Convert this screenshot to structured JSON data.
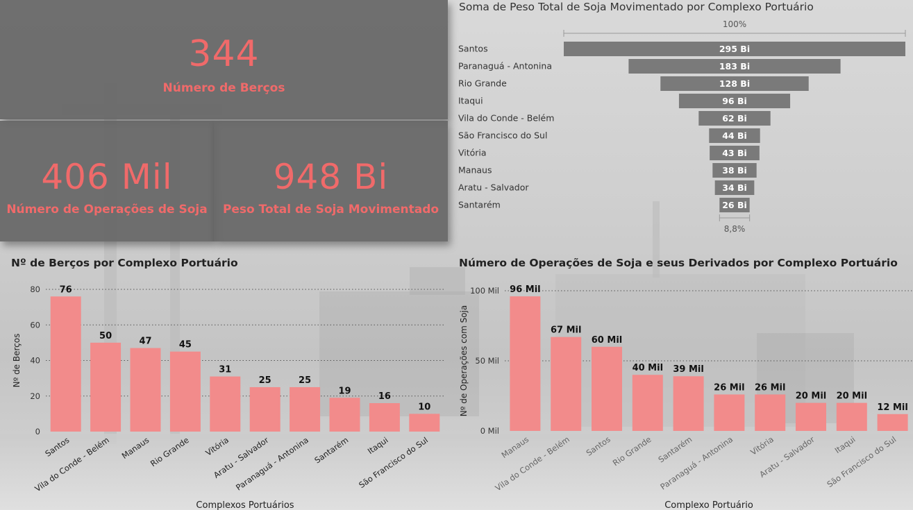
{
  "kpis": {
    "berths": {
      "value": "344",
      "label": "Número de Berços"
    },
    "operations": {
      "value": "406 Mil",
      "label": "Número de Operações de Soja"
    },
    "weight": {
      "value": "948 Bi",
      "label": "Peso Total de Soja Movimentado"
    }
  },
  "colors": {
    "kpi_bg": "#666666",
    "kpi_text": "#f06a6a",
    "funnel_bar": "#7a7a7a",
    "column_bar": "#f28b8b"
  },
  "chart_data": [
    {
      "type": "funnel",
      "title": "Soma de Peso Total de Soja Movimentado por Complexo Portuário",
      "top_pct_label": "100%",
      "bottom_pct_label": "8,8%",
      "categories": [
        "Santos",
        "Paranaguá - Antonina",
        "Rio Grande",
        "Itaqui",
        "Vila do Conde - Belém",
        "São Francisco do Sul",
        "Vitória",
        "Manaus",
        "Aratu - Salvador",
        "Santarém"
      ],
      "values": [
        295,
        183,
        128,
        96,
        62,
        44,
        43,
        38,
        34,
        26
      ],
      "labels": [
        "295 Bi",
        "183 Bi",
        "128 Bi",
        "96 Bi",
        "62 Bi",
        "44 Bi",
        "43 Bi",
        "38 Bi",
        "34 Bi",
        "26 Bi"
      ]
    },
    {
      "type": "bar",
      "title": "Nº de Berços por Complexo Portuário",
      "xlabel": "Complexos Portuários",
      "ylabel": "Nº de Berços",
      "ylim": [
        0,
        80
      ],
      "yticks": [
        0,
        20,
        40,
        60,
        80
      ],
      "ytick_labels": [
        "0",
        "20",
        "40",
        "60",
        "80"
      ],
      "grid": true,
      "categories": [
        "Santos",
        "Vila do Conde - Belém",
        "Manaus",
        "Rio Grande",
        "Vitória",
        "Aratu - Salvador",
        "Paranaguá - Antonina",
        "Santarém",
        "Itaqui",
        "São Francisco do Sul"
      ],
      "values": [
        76,
        50,
        47,
        45,
        31,
        25,
        25,
        19,
        16,
        10
      ],
      "labels": [
        "76",
        "50",
        "47",
        "45",
        "31",
        "25",
        "25",
        "19",
        "16",
        "10"
      ]
    },
    {
      "type": "bar",
      "title": "Número de Operações de Soja e seus Derivados por Complexo Portuário",
      "xlabel": "Complexo Portuário",
      "ylabel": "Nº de Operações com Soja",
      "ylim": [
        0,
        100000
      ],
      "yticks": [
        0,
        50000,
        100000
      ],
      "ytick_labels": [
        "0 Mil",
        "50 Mil",
        "100 Mil"
      ],
      "grid": true,
      "categories": [
        "Manaus",
        "Vila do Conde - Belém",
        "Santos",
        "Rio Grande",
        "Santarém",
        "Paranaguá - Antonina",
        "Vitória",
        "Aratu - Salvador",
        "Itaqui",
        "São Francisco do Sul"
      ],
      "values": [
        96000,
        67000,
        60000,
        40000,
        39000,
        26000,
        26000,
        20000,
        20000,
        12000
      ],
      "labels": [
        "96 Mil",
        "67 Mil",
        "60 Mil",
        "40 Mil",
        "39 Mil",
        "26 Mil",
        "26 Mil",
        "20 Mil",
        "20 Mil",
        "12 Mil"
      ]
    }
  ]
}
